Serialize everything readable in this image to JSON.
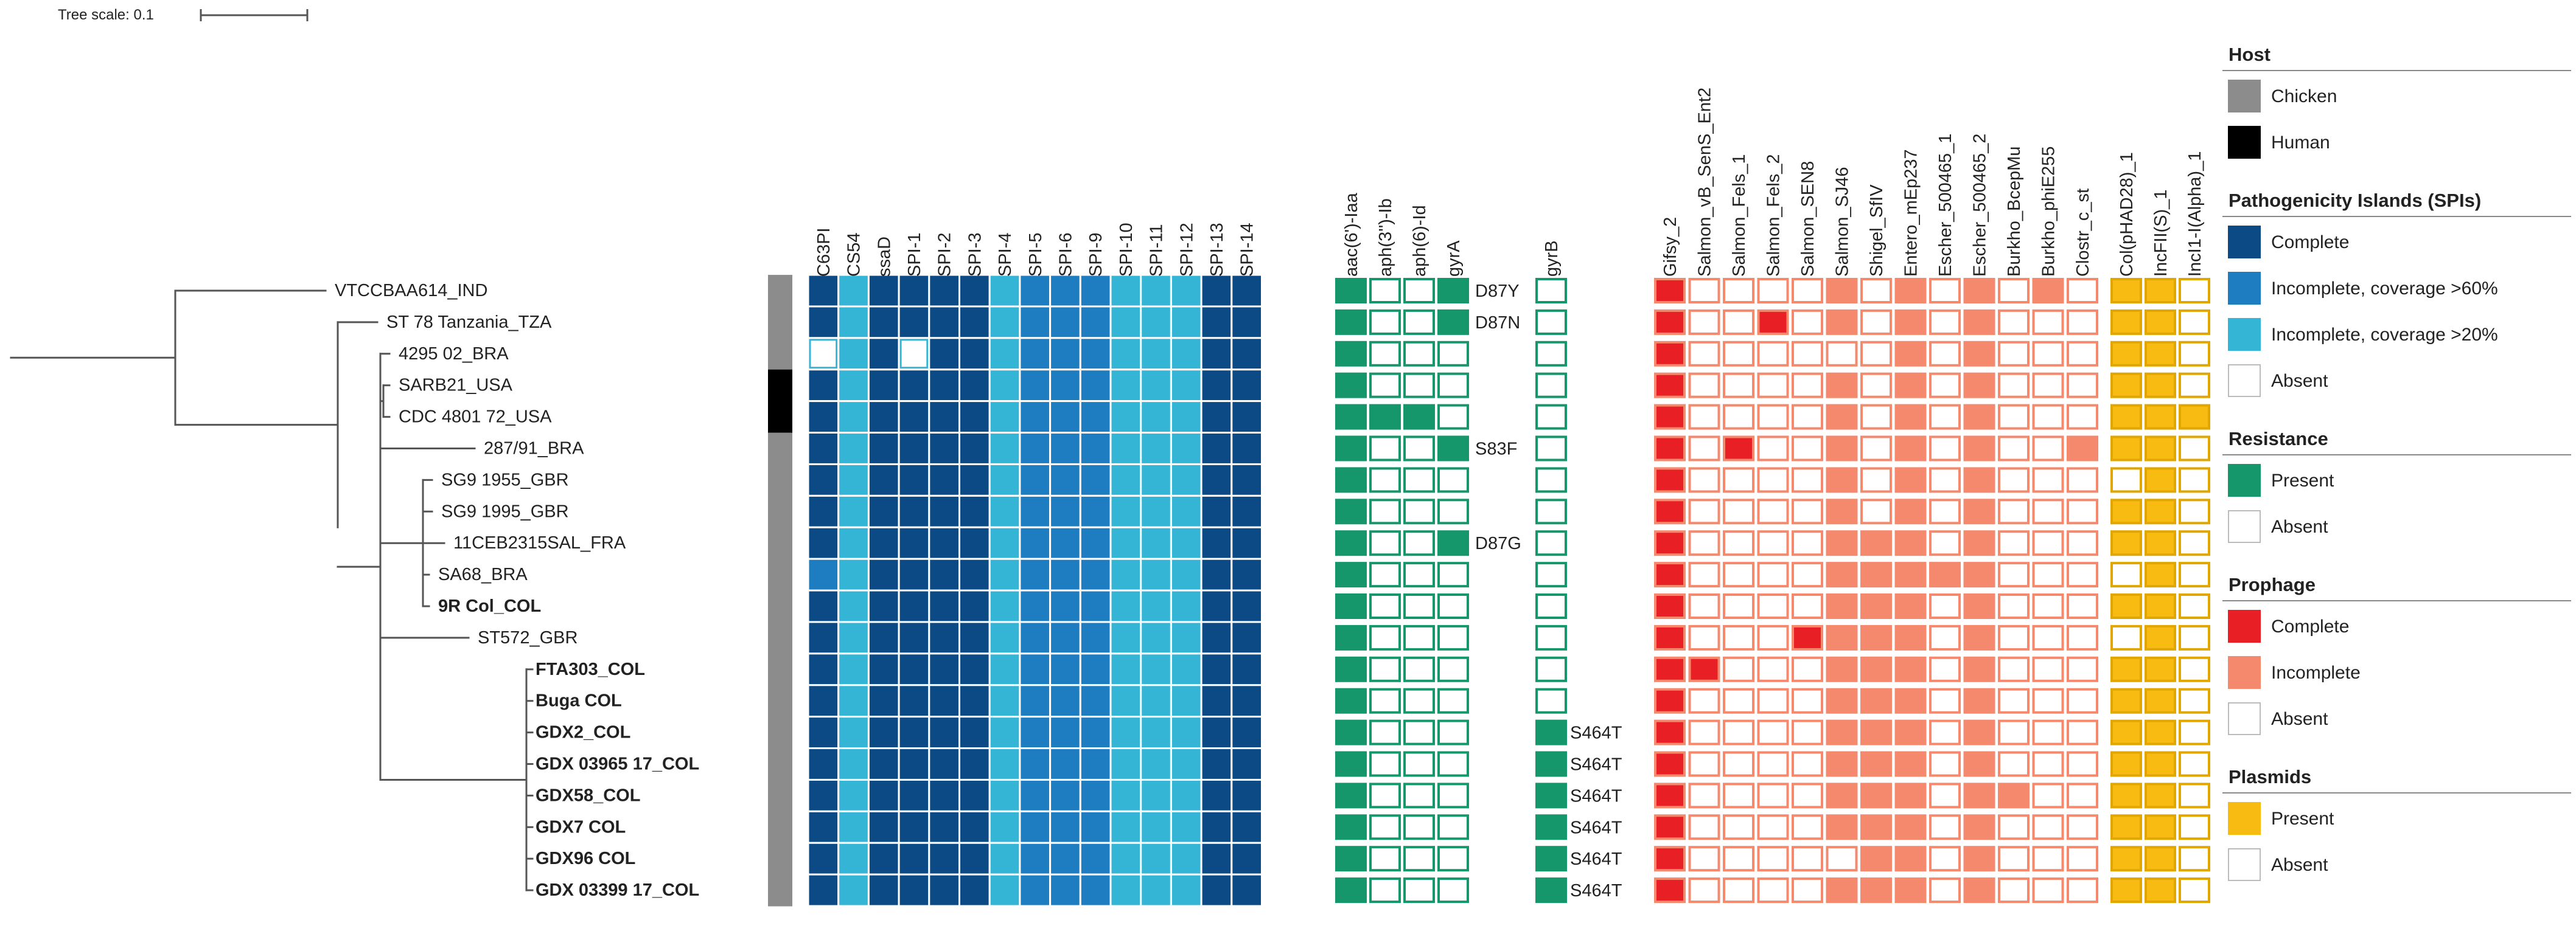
{
  "tree_scale": {
    "label": "Tree scale: 0.1"
  },
  "colors": {
    "branch": "#555555",
    "host": {
      "Chicken": "#8c8c8c",
      "Human": "#000000"
    },
    "spi": {
      "C": "#0b4a84",
      "H": "#1e7cc1",
      "L": "#35b5d6",
      "A": "#ffffff"
    },
    "spi_border": "#0b4a84",
    "resistance": {
      "P": "#16976b",
      "A": "#ffffff"
    },
    "resistance_border": "#16976b",
    "prophage": {
      "C": "#e82025",
      "I": "#f5896d",
      "A": "#ffffff"
    },
    "prophage_border": "#f5896d",
    "plasmid": {
      "P": "#f7bb12",
      "A": "#ffffff"
    },
    "plasmid_border": "#e2a600"
  },
  "columns": {
    "spi": [
      "C63PI",
      "CS54",
      "ssaD",
      "SPI-1",
      "SPI-2",
      "SPI-3",
      "SPI-4",
      "SPI-5",
      "SPI-6",
      "SPI-9",
      "SPI-10",
      "SPI-11",
      "SPI-12",
      "SPI-13",
      "SPI-14"
    ],
    "resistance": [
      "aac(6')-Iaa",
      "aph(3'')-Ib",
      "aph(6)-Id",
      "gyrA"
    ],
    "gyrB": [
      "gyrB"
    ],
    "prophage": [
      "Gifsy_2",
      "Salmon_vB_SenS_Ent2",
      "Salmon_Fels_1",
      "Salmon_Fels_2",
      "Salmon_SEN8",
      "Salmon_SJ46",
      "Shigel_SfIV",
      "Entero_mEp237",
      "Escher_500465_1",
      "Escher_500465_2",
      "Burkho_BcepMu",
      "Burkho_phiE255",
      "Clostr_c_st"
    ],
    "plasmid": [
      "Col(pHAD28)_1",
      "IncFII(S)_1",
      "IncI1-I(Alpha)_1"
    ]
  },
  "taxa": [
    {
      "name": "VTCCBAA614_IND",
      "bold": false,
      "host": "Chicken",
      "spi": "CLCCCCLHHHLLLCC",
      "res": "PAAP",
      "gyrA_mut": "D87Y",
      "gyrB": "A",
      "gyrB_mut": "",
      "pro": "CAAAAIAIAIAIA",
      "pla": "PPA"
    },
    {
      "name": "ST 78 Tanzania_TZA",
      "bold": false,
      "host": "Chicken",
      "spi": "CLCCCCLHHHLLLCC",
      "res": "PAAP",
      "gyrA_mut": "D87N",
      "gyrB": "A",
      "gyrB_mut": "",
      "pro": "CAACAIAIAIAAA",
      "pla": "PPA"
    },
    {
      "name": "4295 02_BRA",
      "bold": false,
      "host": "Chicken",
      "spi": "ALCACCLHHHLLLCC",
      "res": "PAAA",
      "gyrA_mut": "",
      "gyrB": "A",
      "gyrB_mut": "",
      "pro": "CAAAAAAIAIAAA",
      "pla": "PPA"
    },
    {
      "name": "SARB21_USA",
      "bold": false,
      "host": "Human",
      "spi": "CLCCCCLHHHLLLCC",
      "res": "PAAA",
      "gyrA_mut": "",
      "gyrB": "A",
      "gyrB_mut": "",
      "pro": "CAAAAIAIAIAAA",
      "pla": "PPA"
    },
    {
      "name": "CDC 4801 72_USA",
      "bold": false,
      "host": "Human",
      "spi": "CLCCCCLHHHLLLCC",
      "res": "PPPA",
      "gyrA_mut": "",
      "gyrB": "A",
      "gyrB_mut": "",
      "pro": "CAAAAIAIAIAAA",
      "pla": "PPP"
    },
    {
      "name": "287/91_BRA",
      "bold": false,
      "host": "Chicken",
      "spi": "CLCCCCLHHHLLLCC",
      "res": "PAAP",
      "gyrA_mut": "S83F",
      "gyrB": "A",
      "gyrB_mut": "",
      "pro": "CACAAIAIAIAAI",
      "pla": "PPA"
    },
    {
      "name": "SG9 1955_GBR",
      "bold": false,
      "host": "Chicken",
      "spi": "CLCCCCLHHHLLLCC",
      "res": "PAAA",
      "gyrA_mut": "",
      "gyrB": "A",
      "gyrB_mut": "",
      "pro": "CAAAAIAIAIAAA",
      "pla": "APA"
    },
    {
      "name": "SG9 1995_GBR",
      "bold": false,
      "host": "Chicken",
      "spi": "CLCCCCLHHHLLLCC",
      "res": "PAAA",
      "gyrA_mut": "",
      "gyrB": "A",
      "gyrB_mut": "",
      "pro": "CAAAAIAIAIAAA",
      "pla": "PPA"
    },
    {
      "name": "11CEB2315SAL_FRA",
      "bold": false,
      "host": "Chicken",
      "spi": "CLCCCCLHHHLLLCC",
      "res": "PAAP",
      "gyrA_mut": "D87G",
      "gyrB": "A",
      "gyrB_mut": "",
      "pro": "CAAAAIIIAIAAA",
      "pla": "PPA"
    },
    {
      "name": "SA68_BRA",
      "bold": false,
      "host": "Chicken",
      "spi": "HLCCCCLHHHLLLCC",
      "res": "PAAA",
      "gyrA_mut": "",
      "gyrB": "A",
      "gyrB_mut": "",
      "pro": "CAAAAIIIIIAAA",
      "pla": "APA"
    },
    {
      "name": "9R Col_COL",
      "bold": true,
      "host": "Chicken",
      "spi": "CLCCCCLHHHLLLCC",
      "res": "PAAA",
      "gyrA_mut": "",
      "gyrB": "A",
      "gyrB_mut": "",
      "pro": "CAAAAIIIAIAAA",
      "pla": "PPA"
    },
    {
      "name": "ST572_GBR",
      "bold": false,
      "host": "Chicken",
      "spi": "CLCCCCLHHHLLLCC",
      "res": "PAAA",
      "gyrA_mut": "",
      "gyrB": "A",
      "gyrB_mut": "",
      "pro": "CAAACIIIAIAAA",
      "pla": "APA"
    },
    {
      "name": "FTA303_COL",
      "bold": true,
      "host": "Chicken",
      "spi": "CLCCCCLHHHLLLCC",
      "res": "PAAA",
      "gyrA_mut": "",
      "gyrB": "A",
      "gyrB_mut": "",
      "pro": "CCAAAIIIAIAAA",
      "pla": "PPA"
    },
    {
      "name": "Buga  COL",
      "bold": true,
      "host": "Chicken",
      "spi": "CLCCCCLHHHLLLCC",
      "res": "PAAA",
      "gyrA_mut": "",
      "gyrB": "A",
      "gyrB_mut": "",
      "pro": "CAAAAIIIAIAAA",
      "pla": "PPA"
    },
    {
      "name": "GDX2_COL",
      "bold": true,
      "host": "Chicken",
      "spi": "CLCCCCLHHHLLLCC",
      "res": "PAAA",
      "gyrA_mut": "",
      "gyrB": "P",
      "gyrB_mut": "S464T",
      "pro": "CAAAAIIIAIAAA",
      "pla": "PPA"
    },
    {
      "name": "GDX 03965 17_COL",
      "bold": true,
      "host": "Chicken",
      "spi": "CLCCCCLHHHLLLCC",
      "res": "PAAA",
      "gyrA_mut": "",
      "gyrB": "P",
      "gyrB_mut": "S464T",
      "pro": "CAAAAIIIAIAAA",
      "pla": "PPA"
    },
    {
      "name": "GDX58_COL",
      "bold": true,
      "host": "Chicken",
      "spi": "CLCCCCLHHHLLLCC",
      "res": "PAAA",
      "gyrA_mut": "",
      "gyrB": "P",
      "gyrB_mut": "S464T",
      "pro": "CAAAAIIIAIIAA",
      "pla": "PPA"
    },
    {
      "name": "GDX7  COL",
      "bold": true,
      "host": "Chicken",
      "spi": "CLCCCCLHHHLLLCC",
      "res": "PAAA",
      "gyrA_mut": "",
      "gyrB": "P",
      "gyrB_mut": "S464T",
      "pro": "CAAAAIIIAIAAA",
      "pla": "PPA"
    },
    {
      "name": "GDX96  COL",
      "bold": true,
      "host": "Chicken",
      "spi": "CLCCCCLHHHLLLCC",
      "res": "PAAA",
      "gyrA_mut": "",
      "gyrB": "P",
      "gyrB_mut": "S464T",
      "pro": "CAAAAAIIAIAAA",
      "pla": "PPA"
    },
    {
      "name": "GDX 03399 17_COL",
      "bold": true,
      "host": "Chicken",
      "spi": "CLCCCCLHHHLLLCC",
      "res": "PAAA",
      "gyrA_mut": "",
      "gyrB": "P",
      "gyrB_mut": "S464T",
      "pro": "CAAAAIIIAIAAA",
      "pla": "PPA"
    }
  ],
  "legend": [
    {
      "title": "Host",
      "items": [
        {
          "label": "Chicken",
          "group": "host",
          "key": "Chicken"
        },
        {
          "label": "Human",
          "group": "host",
          "key": "Human"
        }
      ]
    },
    {
      "title": "Pathogenicity Islands (SPIs)",
      "items": [
        {
          "label": "Complete",
          "group": "spi",
          "key": "C"
        },
        {
          "label": "Incomplete, coverage >60%",
          "group": "spi",
          "key": "H"
        },
        {
          "label": "Incomplete, coverage >20%",
          "group": "spi",
          "key": "L"
        },
        {
          "label": "Absent",
          "group": "spi",
          "key": "A"
        }
      ]
    },
    {
      "title": "Resistance",
      "items": [
        {
          "label": "Present",
          "group": "resistance",
          "key": "P"
        },
        {
          "label": "Absent",
          "group": "resistance",
          "key": "A"
        }
      ]
    },
    {
      "title": "Prophage",
      "items": [
        {
          "label": "Complete",
          "group": "prophage",
          "key": "C"
        },
        {
          "label": "Incomplete",
          "group": "prophage",
          "key": "I"
        },
        {
          "label": "Absent",
          "group": "prophage",
          "key": "A"
        }
      ]
    },
    {
      "title": "Plasmids",
      "items": [
        {
          "label": "Present",
          "group": "plasmid",
          "key": "P"
        },
        {
          "label": "Absent",
          "group": "plasmid",
          "key": "A"
        }
      ]
    }
  ]
}
